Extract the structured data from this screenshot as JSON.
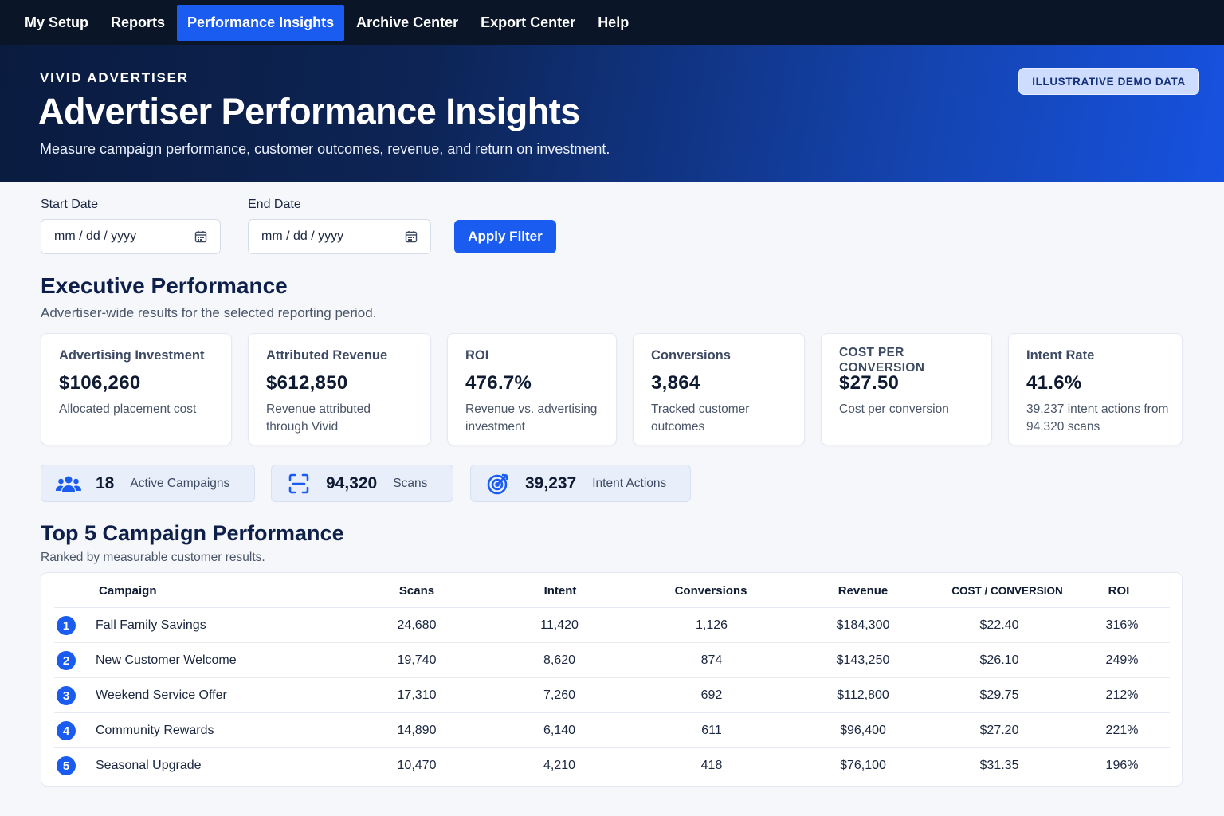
{
  "nav": {
    "items": [
      {
        "label": "My Setup"
      },
      {
        "label": "Reports"
      },
      {
        "label": "Performance Insights",
        "active": true
      },
      {
        "label": "Archive Center"
      },
      {
        "label": "Export Center"
      },
      {
        "label": "Help"
      }
    ]
  },
  "hero": {
    "eyebrow": "VIVID ADVERTISER",
    "title": "Advertiser Performance Insights",
    "subtitle": "Measure campaign performance, customer outcomes, revenue, and return on investment.",
    "badge": "ILLUSTRATIVE DEMO DATA"
  },
  "filters": {
    "start_label": "Start Date",
    "start_placeholder": "mm / dd / yyyy",
    "end_label": "End Date",
    "end_placeholder": "mm / dd / yyyy",
    "apply_label": "Apply Filter",
    "icon": "calendar-icon"
  },
  "executive": {
    "title": "Executive Performance",
    "subtitle": "Advertiser-wide results for the selected reporting period.",
    "kpis": [
      {
        "label": "Advertising Investment",
        "value": "$106,260",
        "desc": "Allocated placement cost"
      },
      {
        "label": "Attributed Revenue",
        "value": "$612,850",
        "desc": "Revenue attributed through Vivid"
      },
      {
        "label": "ROI",
        "value": "476.7%",
        "desc": "Revenue vs. advertising investment"
      },
      {
        "label": "Conversions",
        "value": "3,864",
        "desc": "Tracked customer outcomes"
      },
      {
        "label": "COST PER CONVERSION",
        "value": "$27.50",
        "desc": "Cost per conversion"
      },
      {
        "label": "Intent Rate",
        "value": "41.6%",
        "desc": "39,237 intent actions from 94,320 scans"
      }
    ],
    "stats": [
      {
        "icon": "users-icon",
        "value": "18",
        "label": "Active Campaigns"
      },
      {
        "icon": "scan-icon",
        "value": "94,320",
        "label": "Scans"
      },
      {
        "icon": "target-icon",
        "value": "39,237",
        "label": "Intent Actions"
      }
    ]
  },
  "top_campaigns": {
    "title": "Top 5 Campaign Performance",
    "subtitle": "Ranked by measurable customer results.",
    "columns": [
      "Campaign",
      "Scans",
      "Intent",
      "Conversions",
      "Revenue",
      "COST / CONVERSION",
      "ROI"
    ],
    "rows": [
      {
        "rank": "1",
        "campaign": "Fall Family Savings",
        "scans": "24,680",
        "intent": "11,420",
        "conversions": "1,126",
        "revenue": "$184,300",
        "cpc": "$22.40",
        "roi": "316%"
      },
      {
        "rank": "2",
        "campaign": "New Customer Welcome",
        "scans": "19,740",
        "intent": "8,620",
        "conversions": "874",
        "revenue": "$143,250",
        "cpc": "$26.10",
        "roi": "249%"
      },
      {
        "rank": "3",
        "campaign": "Weekend Service Offer",
        "scans": "17,310",
        "intent": "7,260",
        "conversions": "692",
        "revenue": "$112,800",
        "cpc": "$29.75",
        "roi": "212%"
      },
      {
        "rank": "4",
        "campaign": "Community Rewards",
        "scans": "14,890",
        "intent": "6,140",
        "conversions": "611",
        "revenue": "$96,400",
        "cpc": "$27.20",
        "roi": "221%"
      },
      {
        "rank": "5",
        "campaign": "Seasonal Upgrade",
        "scans": "10,470",
        "intent": "4,210",
        "conversions": "418",
        "revenue": "$76,100",
        "cpc": "$31.35",
        "roi": "196%"
      }
    ]
  },
  "colors": {
    "nav_bg": "#0b1528",
    "accent": "#1a5cf0",
    "hero_start": "#0a1b3f",
    "hero_end": "#1752e0",
    "badge_bg": "#cddcff",
    "page_bg": "#f5f7fb"
  }
}
